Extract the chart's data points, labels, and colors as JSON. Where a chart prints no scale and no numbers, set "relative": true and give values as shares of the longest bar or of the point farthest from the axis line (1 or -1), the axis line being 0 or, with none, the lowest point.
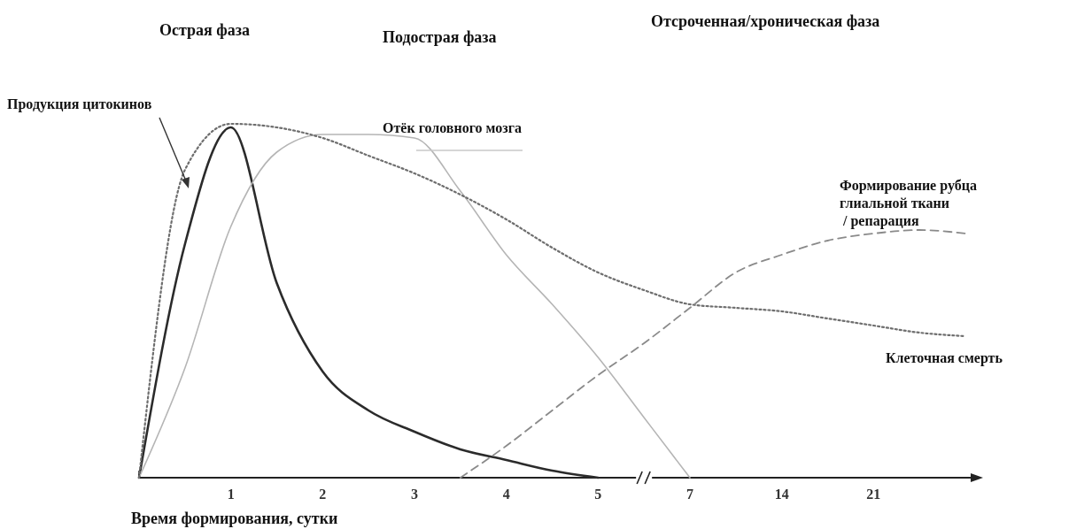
{
  "chart_data": {
    "type": "line",
    "relative": true,
    "xlabel": "Время формирования, сутки",
    "annotations": [
      "Острая фаза",
      "Подострая фаза",
      "Отсроченная/хроническая фаза"
    ],
    "categories": [
      null,
      null,
      "1",
      null,
      "2",
      null,
      "3",
      null,
      "4",
      null,
      "5",
      null,
      "7",
      null,
      "14",
      null,
      "21",
      null,
      null
    ],
    "series": [
      {
        "name": "Продукция цитокинов",
        "color": "#2b2b2b",
        "line_style": "solid",
        "values": [
          0,
          0.66,
          0.99,
          0.55,
          0.3,
          0.19,
          0.13,
          0.08,
          0.05,
          0.02,
          0,
          null,
          null,
          null,
          null,
          null,
          null,
          null,
          null
        ]
      },
      {
        "name": "Отёк головного мозга",
        "color": "#b5b5b5",
        "line_style": "solid",
        "values": [
          0,
          0.31,
          0.71,
          0.92,
          0.97,
          0.97,
          0.96,
          0.81,
          0.63,
          0.49,
          0.34,
          0.17,
          0,
          null,
          null,
          null,
          null,
          null,
          null
        ]
      },
      {
        "name": "Клеточная смерть",
        "color": "#6e6e6e",
        "line_style": "dotted",
        "values": [
          0,
          0.87,
          1,
          0.99,
          0.96,
          0.91,
          0.86,
          0.8,
          0.73,
          0.65,
          0.58,
          0.53,
          0.49,
          0.48,
          0.47,
          0.45,
          0.43,
          0.41,
          0.4
        ]
      },
      {
        "name": "Формирование рубца\nглиальной ткани\n / репарация",
        "color": "#8a8a8a",
        "line_style": "dashed",
        "values": [
          null,
          null,
          null,
          null,
          null,
          null,
          null,
          0,
          0.09,
          0.19,
          0.29,
          0.38,
          0.48,
          0.58,
          0.63,
          0.67,
          0.69,
          0.7,
          0.69
        ]
      }
    ]
  }
}
